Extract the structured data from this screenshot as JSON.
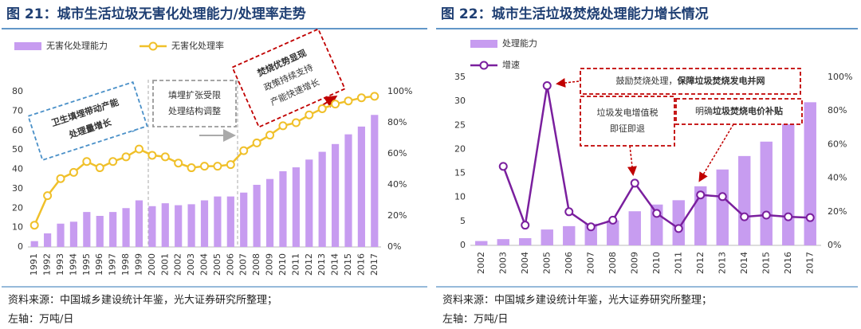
{
  "chart_data": [
    {
      "type": "bar-line",
      "title": "图 21：城市生活垃圾无害化处理能力/处理率走势",
      "categories": [
        "1991",
        "1992",
        "1993",
        "1994",
        "1995",
        "1996",
        "1997",
        "1998",
        "1999",
        "2000",
        "2001",
        "2002",
        "2003",
        "2004",
        "2005",
        "2006",
        "2007",
        "2008",
        "2009",
        "2010",
        "2011",
        "2012",
        "2013",
        "2014",
        "2015",
        "2016",
        "2017"
      ],
      "series": [
        {
          "name": "无害化处理能力",
          "type": "bar",
          "color": "#c79cf0",
          "values": [
            3,
            7,
            12,
            13,
            18,
            16,
            18,
            20,
            24,
            21,
            22.5,
            21.5,
            22,
            24,
            26,
            26,
            28,
            32,
            35,
            39,
            41,
            45,
            49,
            53,
            58,
            62,
            68
          ]
        },
        {
          "name": "无害化处理率",
          "type": "line",
          "axis": "y2",
          "color": "#f0c02a",
          "values": [
            14,
            33,
            44,
            48,
            55,
            51,
            55,
            58,
            63,
            59,
            58,
            54,
            51,
            52,
            52,
            53,
            62,
            67,
            72,
            78,
            80,
            85,
            89,
            92,
            94,
            96,
            97
          ]
        }
      ],
      "ylim": [
        0,
        80
      ],
      "yticks": [
        0,
        10,
        20,
        30,
        40,
        50,
        60,
        70,
        80
      ],
      "y2lim": [
        0,
        100
      ],
      "y2ticks": [
        {
          "value": 0,
          "label": "0%"
        },
        {
          "value": 20,
          "label": "20%"
        },
        {
          "value": 40,
          "label": "40%"
        },
        {
          "value": 60,
          "label": "60%"
        },
        {
          "value": 80,
          "label": "80%"
        },
        {
          "value": 100,
          "label": "100%"
        }
      ],
      "annotations": [
        {
          "lines": [
            "卫生填埋带动产能",
            "处理量增长"
          ]
        },
        {
          "lines": [
            "填埋扩张受限",
            "处理结构调整"
          ]
        },
        {
          "lines": [
            "焚烧优势显现",
            "政策持续支持",
            "产能快速增长"
          ]
        }
      ],
      "notes": [
        "资料来源：中国城乡建设统计年鉴，光大证券研究所整理；",
        "左轴：万吨/日"
      ]
    },
    {
      "type": "bar-line",
      "title": "图 22：城市生活垃圾焚烧处理能力增长情况",
      "categories": [
        "2002",
        "2003",
        "2004",
        "2005",
        "2006",
        "2007",
        "2008",
        "2009",
        "2010",
        "2011",
        "2012",
        "2013",
        "2014",
        "2015",
        "2016",
        "2017"
      ],
      "series": [
        {
          "name": "处理能力",
          "type": "bar",
          "color": "#c79cf0",
          "values": [
            0.9,
            1.3,
            1.5,
            3.3,
            4.0,
            4.5,
            5.2,
            7.1,
            8.5,
            9.4,
            12.3,
            15.8,
            18.6,
            21.6,
            25.6,
            29.8
          ]
        },
        {
          "name": "增速",
          "type": "line",
          "axis": "y2",
          "color": "#7a1f9e",
          "values": [
            null,
            47,
            12,
            95,
            20,
            11,
            15,
            37,
            19,
            10,
            30,
            29,
            17,
            18,
            17,
            16.5
          ]
        }
      ],
      "ylim": [
        0,
        35
      ],
      "yticks": [
        0,
        5,
        10,
        15,
        20,
        25,
        30,
        35
      ],
      "y2lim": [
        0,
        100
      ],
      "y2ticks": [
        {
          "value": 0,
          "label": "0%"
        },
        {
          "value": 20,
          "label": "20%"
        },
        {
          "value": 40,
          "label": "40%"
        },
        {
          "value": 60,
          "label": "60%"
        },
        {
          "value": 80,
          "label": "80%"
        },
        {
          "value": 100,
          "label": "100%"
        }
      ],
      "annotations": [
        {
          "parts": [
            "鼓励焚烧处理，",
            "保障垃圾焚烧发电并网"
          ]
        },
        {
          "lines": [
            "垃圾发电增值税",
            "即征即退"
          ]
        },
        {
          "parts": [
            "明确",
            "垃圾焚烧电价补贴"
          ]
        }
      ],
      "notes": [
        "资料来源：中国城乡建设统计年鉴，光大证券研究所整理；",
        "左轴：万吨/日"
      ]
    }
  ]
}
